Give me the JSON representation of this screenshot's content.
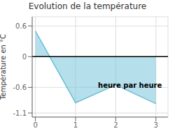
{
  "chart_data": {
    "type": "area",
    "title": "Evolution de la température",
    "xlabel": "heure par heure",
    "ylabel": "Température en °C",
    "x": [
      0,
      1,
      2,
      3
    ],
    "values": [
      0.5,
      -0.9,
      -0.55,
      -0.92
    ],
    "color": "#6bbfd8",
    "xlim": [
      -0.08,
      3.3
    ],
    "ylim": [
      -1.18,
      0.78
    ],
    "xticks": [
      0,
      1,
      2,
      3
    ],
    "yticks": [
      -1.1,
      -0.6,
      0.0,
      0.6
    ],
    "grid": true
  }
}
